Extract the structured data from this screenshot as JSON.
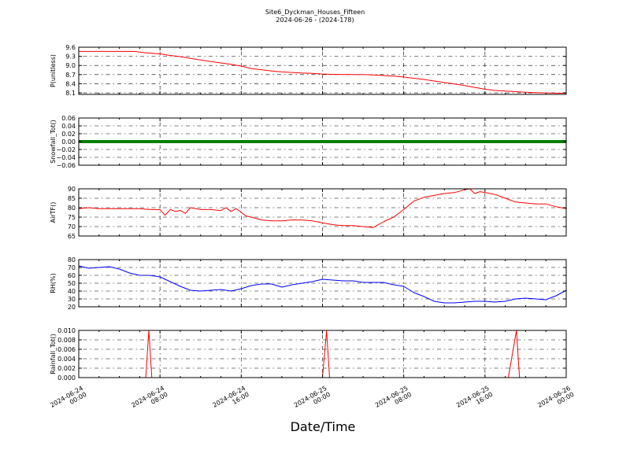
{
  "title": "Site6_Dyckman_Houses_Fifteen",
  "subtitle": "2024-06-26 - (2024-178)",
  "xlabel": "Date/Time",
  "x_ticks": [
    [
      "2024-06-24",
      "00:00"
    ],
    [
      "2024-06-24",
      "08:00"
    ],
    [
      "2024-06-24",
      "16:00"
    ],
    [
      "2024-06-25",
      "00:00"
    ],
    [
      "2024-06-25",
      "08:00"
    ],
    [
      "2024-06-25",
      "16:00"
    ],
    [
      "2024-06-26",
      "00:00"
    ]
  ],
  "chart_data": [
    {
      "type": "line",
      "ylabel": "P(unitless)",
      "ylim": [
        8.05,
        9.6
      ],
      "yticks": [
        "9.6",
        "9.3",
        "9.0",
        "8.7",
        "8.4",
        "8.1"
      ],
      "ytick_values": [
        9.6,
        9.3,
        9.0,
        8.7,
        8.4,
        8.1
      ],
      "xlim_hours": [
        0,
        48
      ],
      "grid": true,
      "color": "#ff0000",
      "x_hours": [
        0,
        2,
        4,
        5.5,
        6.5,
        8,
        9,
        10,
        11,
        13,
        15,
        16,
        17,
        18,
        19,
        20,
        21,
        22,
        23,
        24,
        25,
        26,
        27,
        28,
        29,
        30,
        31,
        32,
        33,
        34,
        35,
        36,
        37,
        38,
        39,
        40,
        41,
        42,
        43,
        44,
        45,
        46,
        47,
        48
      ],
      "values": [
        9.46,
        9.46,
        9.46,
        9.46,
        9.42,
        9.38,
        9.33,
        9.29,
        9.23,
        9.13,
        9.04,
        8.98,
        8.9,
        8.86,
        8.82,
        8.79,
        8.77,
        8.75,
        8.74,
        8.72,
        8.71,
        8.7,
        8.7,
        8.7,
        8.69,
        8.67,
        8.65,
        8.62,
        8.58,
        8.54,
        8.49,
        8.44,
        8.39,
        8.34,
        8.28,
        8.22,
        8.18,
        8.16,
        8.14,
        8.12,
        8.11,
        8.1,
        8.09,
        8.09
      ]
    },
    {
      "type": "line",
      "ylabel": "Snowfall_Tot()",
      "ylim": [
        -0.06,
        0.06
      ],
      "yticks": [
        "0.06",
        "0.04",
        "0.02",
        "0.00",
        "−0.02",
        "−0.04",
        "−0.06"
      ],
      "ytick_values": [
        0.06,
        0.04,
        0.02,
        0.0,
        -0.02,
        -0.04,
        -0.06
      ],
      "xlim_hours": [
        0,
        48
      ],
      "grid": true,
      "color": "#008000",
      "x_hours": [
        0,
        48
      ],
      "values": [
        0.0,
        0.0
      ]
    },
    {
      "type": "line",
      "ylabel": "AirTF()",
      "ylim": [
        65,
        90
      ],
      "yticks": [
        "90",
        "85",
        "80",
        "75",
        "70",
        "65"
      ],
      "ytick_values": [
        90,
        85,
        80,
        75,
        70,
        65
      ],
      "xlim_hours": [
        0,
        48
      ],
      "grid": true,
      "color": "#ff0000",
      "x_hours": [
        0,
        1,
        2,
        3,
        4,
        5,
        6,
        7,
        8,
        8.5,
        9,
        9.5,
        10,
        10.5,
        11,
        12,
        13,
        14,
        14.5,
        15,
        15.5,
        16,
        16.5,
        17,
        18,
        19,
        20,
        21,
        22,
        23,
        24,
        25,
        26,
        27,
        28,
        29,
        30,
        31,
        32,
        33,
        34,
        35,
        36,
        37,
        38,
        38.5,
        39,
        39.5,
        40,
        41,
        42,
        43,
        44,
        45,
        46,
        47,
        48
      ],
      "values": [
        79.5,
        80.0,
        79.5,
        79.5,
        79.5,
        79.5,
        79.5,
        79.0,
        79.0,
        76.0,
        79.0,
        78.0,
        78.5,
        77.0,
        80.0,
        79.0,
        79.0,
        78.5,
        80.0,
        78.0,
        79.5,
        77.5,
        75.5,
        75.0,
        73.5,
        73.0,
        73.0,
        73.5,
        73.5,
        73.0,
        72.0,
        71.0,
        70.5,
        70.5,
        70.0,
        69.5,
        72.5,
        75.0,
        79.0,
        83.5,
        85.5,
        86.5,
        87.5,
        88.0,
        89.5,
        90.0,
        87.5,
        88.5,
        88.0,
        87.0,
        85.0,
        83.0,
        82.5,
        82.0,
        82.0,
        80.5,
        79.5
      ]
    },
    {
      "type": "line",
      "ylabel": "RH(%)",
      "ylim": [
        20,
        80
      ],
      "yticks": [
        "80",
        "70",
        "60",
        "50",
        "40",
        "30",
        "20"
      ],
      "ytick_values": [
        80,
        70,
        60,
        50,
        40,
        30,
        20
      ],
      "xlim_hours": [
        0,
        48
      ],
      "grid": true,
      "color": "#0000ff",
      "x_hours": [
        0,
        1,
        2,
        3,
        4,
        5,
        6,
        7,
        8,
        9,
        10,
        11,
        12,
        13,
        14,
        15,
        16,
        17,
        18,
        19,
        20,
        21,
        22,
        23,
        24,
        25,
        26,
        27,
        28,
        29,
        30,
        31,
        32,
        33,
        34,
        35,
        36,
        37,
        38,
        39,
        40,
        41,
        42,
        43,
        44,
        45,
        46,
        47,
        48
      ],
      "values": [
        72,
        69,
        70,
        71,
        68,
        63,
        60,
        60,
        58,
        52,
        46,
        41,
        40,
        41,
        42,
        40,
        43,
        47,
        49,
        49,
        45,
        48,
        50,
        52,
        55,
        54,
        53,
        53,
        51,
        51,
        51,
        48,
        46,
        38,
        33,
        27,
        25,
        25,
        26,
        27,
        27,
        26,
        27,
        30,
        31,
        30,
        29,
        34,
        41
      ]
    },
    {
      "type": "line",
      "ylabel": "Rainfall_Tot()",
      "ylim": [
        0.0,
        0.01
      ],
      "yticks": [
        "0.010",
        "0.008",
        "0.006",
        "0.004",
        "0.002",
        "0.000"
      ],
      "ytick_values": [
        0.01,
        0.008,
        0.006,
        0.004,
        0.002,
        0.0
      ],
      "xlim_hours": [
        0,
        48
      ],
      "grid": true,
      "color": "#ff0000",
      "x_hours": [
        0,
        6.6,
        6.9,
        7.2,
        24.0,
        24.4,
        24.7,
        42.3,
        43.1,
        43.4,
        48
      ],
      "values": [
        0,
        0,
        0.01,
        0,
        0,
        0.01,
        0,
        0,
        0.01,
        0,
        0
      ]
    }
  ]
}
